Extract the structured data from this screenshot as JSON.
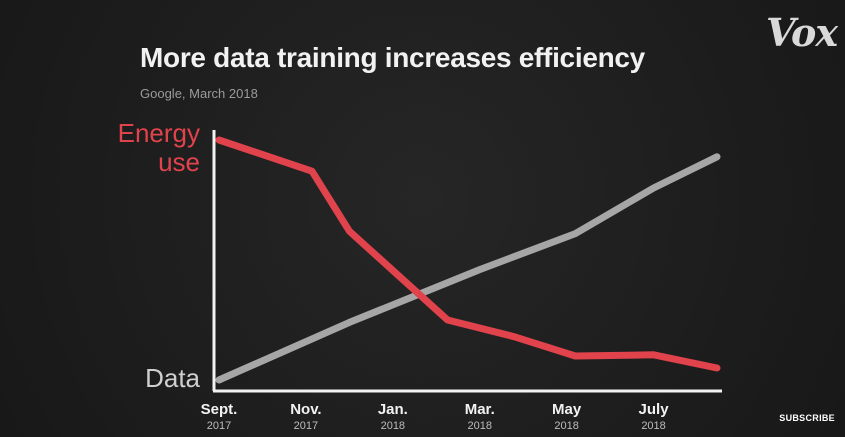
{
  "brand": {
    "logo_text": "Vox"
  },
  "footer": {
    "subscribe_label": "SUBSCRIBE"
  },
  "colors": {
    "energy": "#e0434b",
    "data": "#a6a6a6",
    "axis": "#f2f2f2"
  },
  "chart_data": {
    "type": "line",
    "title": "More data training increases efficiency",
    "subtitle": "Google, March 2018",
    "y_top_label": [
      "Energy",
      "use"
    ],
    "y_bottom_label": "Data",
    "x_ticks": [
      {
        "label": "Sept.",
        "year": "2017"
      },
      {
        "label": "Nov.",
        "year": "2017"
      },
      {
        "label": "Jan.",
        "year": "2018"
      },
      {
        "label": "Mar.",
        "year": "2018"
      },
      {
        "label": "May",
        "year": "2018"
      },
      {
        "label": "July",
        "year": "2018"
      }
    ],
    "x": [
      0,
      0.46,
      0.63,
      1.25,
      2.0,
      2.56,
      3.1,
      4.0,
      5.0,
      5.73
    ],
    "xlim": [
      0,
      5.73
    ],
    "ylim": [
      0,
      100
    ],
    "series": [
      {
        "name": "Energy use",
        "color": "#e0434b",
        "x": [
          0,
          1.07,
          1.5,
          2.63,
          3.4,
          4.1,
          5.0,
          5.73
        ],
        "values": [
          100,
          87,
          62,
          25,
          18,
          10,
          10.5,
          5
        ]
      },
      {
        "name": "Data",
        "color": "#a6a6a6",
        "x": [
          0,
          1.5,
          3.0,
          4.1,
          5.0,
          5.73
        ],
        "values": [
          0,
          24,
          46,
          61,
          80,
          93
        ]
      }
    ]
  }
}
